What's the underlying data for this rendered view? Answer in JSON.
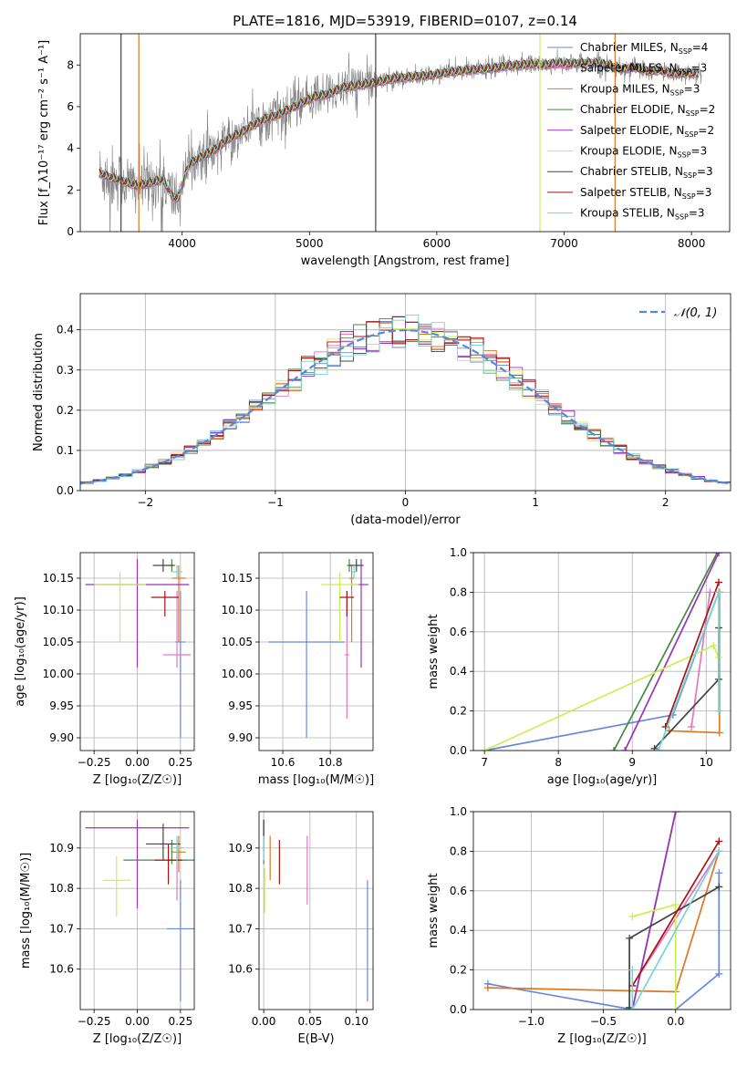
{
  "chart_data": [
    {
      "id": "spectrum",
      "type": "line",
      "title": "PLATE=1816, MJD=53919, FIBERID=0107, z=0.14",
      "xlabel": "wavelength [Angstrom, rest frame]",
      "ylabel": "Flux [f_λ10⁻¹⁷ erg cm⁻² s⁻¹ A⁻¹]",
      "xlim": [
        3200,
        8300
      ],
      "ylim": [
        0,
        9.5
      ],
      "xticks": [
        4000,
        5000,
        6000,
        7000,
        8000
      ],
      "yticks": [
        0,
        2,
        4,
        6,
        8
      ],
      "data_color": "#808080",
      "legend_position": "upper right",
      "legend": [
        {
          "label": "Chabrier MILES, N_SSP=4",
          "color": "#6688dd"
        },
        {
          "label": "Salpeter MILES, N_SSP=3",
          "color": "#e377c2"
        },
        {
          "label": "Kroupa MILES, N_SSP=3",
          "color": "#dd7722"
        },
        {
          "label": "Chabrier ELODIE, N_SSP=2",
          "color": "#448844"
        },
        {
          "label": "Salpeter ELODIE, N_SSP=2",
          "color": "#9933bb"
        },
        {
          "label": "Kroupa ELODIE, N_SSP=3",
          "color": "#ccee55"
        },
        {
          "label": "Chabrier STELIB, N_SSP=3",
          "color": "#444444"
        },
        {
          "label": "Salpeter STELIB, N_SSP=3",
          "color": "#aa1111"
        },
        {
          "label": "Kroupa STELIB, N_SSP=3",
          "color": "#77d4d4"
        }
      ],
      "model_points": [
        [
          3350,
          2.8
        ],
        [
          3450,
          2.6
        ],
        [
          3550,
          2.4
        ],
        [
          3650,
          2.2
        ],
        [
          3750,
          2.35
        ],
        [
          3850,
          2.5
        ],
        [
          3920,
          1.7
        ],
        [
          3970,
          1.6
        ],
        [
          4050,
          3.2
        ],
        [
          4150,
          3.6
        ],
        [
          4250,
          3.9
        ],
        [
          4350,
          4.4
        ],
        [
          4450,
          4.7
        ],
        [
          4550,
          5.1
        ],
        [
          4650,
          5.4
        ],
        [
          4750,
          5.6
        ],
        [
          4850,
          5.9
        ],
        [
          4950,
          6.2
        ],
        [
          5050,
          6.5
        ],
        [
          5150,
          6.6
        ],
        [
          5250,
          6.9
        ],
        [
          5350,
          7.0
        ],
        [
          5450,
          7.1
        ],
        [
          5550,
          7.2
        ],
        [
          5650,
          7.35
        ],
        [
          5750,
          7.4
        ],
        [
          5850,
          7.45
        ],
        [
          5950,
          7.5
        ],
        [
          6050,
          7.6
        ],
        [
          6150,
          7.7
        ],
        [
          6250,
          7.75
        ],
        [
          6350,
          7.8
        ],
        [
          6450,
          7.85
        ],
        [
          6550,
          7.95
        ],
        [
          6650,
          8.0
        ],
        [
          6750,
          8.05
        ],
        [
          6850,
          8.0
        ],
        [
          6950,
          8.1
        ],
        [
          7050,
          8.05
        ],
        [
          7150,
          8.1
        ],
        [
          7250,
          8.1
        ],
        [
          7350,
          8.0
        ],
        [
          7450,
          7.8
        ],
        [
          7550,
          7.9
        ],
        [
          7650,
          7.7
        ],
        [
          7750,
          7.75
        ],
        [
          7850,
          7.6
        ],
        [
          7950,
          7.6
        ],
        [
          8050,
          7.6
        ]
      ],
      "spikes": [
        [
          3520,
          "#444444"
        ],
        [
          3660,
          "#dd7722"
        ],
        [
          6810,
          "#ccee55"
        ],
        [
          7400,
          "#dd7722"
        ],
        [
          5520,
          "#444444"
        ]
      ]
    },
    {
      "id": "residuals",
      "type": "line",
      "xlabel": "(data-model)/error",
      "ylabel": "Normed distribution",
      "xlim": [
        -2.5,
        2.5
      ],
      "ylim": [
        0,
        0.49
      ],
      "xticks": [
        -2,
        -1,
        0,
        1,
        2
      ],
      "yticks": [
        0.0,
        0.1,
        0.2,
        0.3,
        0.4
      ],
      "gaussian_label": "𝒩(0, 1)",
      "gaussian_color": "#5588dd",
      "legend_position": "upper right",
      "bin_width": 0.1
    },
    {
      "id": "age_vs_Z",
      "type": "scatter",
      "xlabel": "Z [log₁₀(Z/Z☉)]",
      "ylabel": "age  [log₁₀(age/yr)]",
      "xlim": [
        -0.33,
        0.33
      ],
      "ylim": [
        9.88,
        10.19
      ],
      "xticks": [
        -0.25,
        0.0,
        0.25
      ],
      "yticks": [
        9.9,
        9.95,
        10.0,
        10.05,
        10.1,
        10.15
      ],
      "points": [
        {
          "color": "#6688dd",
          "x": 0.25,
          "y": 10.05,
          "xerr": 0.03,
          "yerr": [
            0.15,
            0.08
          ]
        },
        {
          "color": "#e377c2",
          "x": 0.23,
          "y": 10.03,
          "xerr": 0.08,
          "yerr": [
            0.02,
            0.1
          ]
        },
        {
          "color": "#dd7722",
          "x": 0.24,
          "y": 10.15,
          "xerr": 0.04,
          "yerr": [
            0.1,
            0.02
          ]
        },
        {
          "color": "#448844",
          "x": 0.2,
          "y": 10.17,
          "xerr": 0.02,
          "yerr": [
            0.01,
            0.01
          ]
        },
        {
          "color": "#9933bb",
          "x": 0.0,
          "y": 10.14,
          "xerr": 0.3,
          "yerr": [
            0.13,
            0.04
          ]
        },
        {
          "color": "#ccee55",
          "x": -0.1,
          "y": 10.14,
          "xerr": 0.15,
          "yerr": [
            0.09,
            0.02
          ]
        },
        {
          "color": "#444444",
          "x": 0.15,
          "y": 10.17,
          "xerr": 0.06,
          "yerr": [
            0.01,
            0.01
          ]
        },
        {
          "color": "#aa1111",
          "x": 0.16,
          "y": 10.12,
          "xerr": 0.08,
          "yerr": [
            0.03,
            0.01
          ]
        },
        {
          "color": "#77d4d4",
          "x": 0.23,
          "y": 10.16,
          "xerr": 0.03,
          "yerr": [
            0.01,
            0.01
          ]
        }
      ]
    },
    {
      "id": "age_vs_mass",
      "type": "scatter",
      "xlabel": "mass [log₁₀(M/M☉)]",
      "ylabel": "",
      "xlim": [
        10.5,
        10.98
      ],
      "ylim": [
        9.88,
        10.19
      ],
      "xticks": [
        10.6,
        10.8
      ],
      "yticks": [
        9.9,
        9.95,
        10.0,
        10.05,
        10.1,
        10.15
      ],
      "points": [
        {
          "color": "#6688dd",
          "x": 10.7,
          "y": 10.05,
          "xerr": 0.16,
          "yerr": [
            0.15,
            0.08
          ]
        },
        {
          "color": "#e377c2",
          "x": 10.87,
          "y": 10.03,
          "xerr": 0.01,
          "yerr": [
            0.1,
            0.1
          ]
        },
        {
          "color": "#dd7722",
          "x": 10.89,
          "y": 10.15,
          "xerr": 0.01,
          "yerr": [
            0.1,
            0.02
          ]
        },
        {
          "color": "#448844",
          "x": 10.88,
          "y": 10.17,
          "xerr": 0.01,
          "yerr": [
            0.01,
            0.01
          ]
        },
        {
          "color": "#9933bb",
          "x": 10.93,
          "y": 10.14,
          "xerr": 0.03,
          "yerr": [
            0.13,
            0.04
          ]
        },
        {
          "color": "#ccee55",
          "x": 10.84,
          "y": 10.14,
          "xerr": 0.08,
          "yerr": [
            0.09,
            0.02
          ]
        },
        {
          "color": "#444444",
          "x": 10.91,
          "y": 10.17,
          "xerr": 0.03,
          "yerr": [
            0.01,
            0.01
          ]
        },
        {
          "color": "#aa1111",
          "x": 10.87,
          "y": 10.12,
          "xerr": 0.03,
          "yerr": [
            0.03,
            0.01
          ]
        },
        {
          "color": "#77d4d4",
          "x": 10.9,
          "y": 10.16,
          "xerr": 0.01,
          "yerr": [
            0.01,
            0.01
          ]
        }
      ]
    },
    {
      "id": "weight_vs_age",
      "type": "line",
      "xlabel": "age  [log₁₀(age/yr)]",
      "ylabel": "mass weight",
      "xlim": [
        6.85,
        10.33
      ],
      "ylim": [
        0,
        1.0
      ],
      "xticks": [
        7,
        8,
        9,
        10
      ],
      "yticks": [
        0.0,
        0.2,
        0.4,
        0.6,
        0.8,
        1.0
      ],
      "series": [
        {
          "color": "#6688dd",
          "points": [
            [
              7.0,
              0.0
            ],
            [
              9.55,
              0.18
            ],
            [
              10.17,
              0.8
            ]
          ]
        },
        {
          "color": "#e377c2",
          "points": [
            [
              9.8,
              0.12
            ],
            [
              10.05,
              0.8
            ]
          ]
        },
        {
          "color": "#dd7722",
          "points": [
            [
              9.5,
              0.1
            ],
            [
              10.18,
              0.09
            ],
            [
              10.18,
              0.8
            ]
          ]
        },
        {
          "color": "#448844",
          "points": [
            [
              8.75,
              0.0
            ],
            [
              10.15,
              1.0
            ]
          ]
        },
        {
          "color": "#9933bb",
          "points": [
            [
              8.9,
              0.0
            ],
            [
              10.17,
              1.0
            ]
          ]
        },
        {
          "color": "#ccee55",
          "points": [
            [
              7.0,
              0.0
            ],
            [
              10.1,
              0.53
            ],
            [
              10.17,
              0.47
            ]
          ]
        },
        {
          "color": "#444444",
          "points": [
            [
              9.3,
              0.01
            ],
            [
              10.17,
              0.36
            ],
            [
              10.17,
              0.62
            ]
          ]
        },
        {
          "color": "#aa1111",
          "points": [
            [
              9.45,
              0.12
            ],
            [
              10.17,
              0.85
            ]
          ]
        },
        {
          "color": "#77d4d4",
          "points": [
            [
              9.35,
              0.0
            ],
            [
              10.17,
              0.8
            ],
            [
              10.17,
              0.2
            ]
          ]
        }
      ]
    },
    {
      "id": "mass_vs_Z",
      "type": "scatter",
      "xlabel": "Z [log₁₀(Z/Z☉)]",
      "ylabel": "mass [log₁₀(M/M☉)]",
      "xlim": [
        -0.33,
        0.33
      ],
      "ylim": [
        10.5,
        10.99
      ],
      "xticks": [
        -0.25,
        0.0,
        0.25
      ],
      "yticks": [
        10.6,
        10.7,
        10.8,
        10.9
      ],
      "points": [
        {
          "color": "#6688dd",
          "x": 0.25,
          "y": 10.7,
          "xerr": 0.08,
          "yerr": [
            0.18,
            0.12
          ]
        },
        {
          "color": "#e377c2",
          "x": 0.23,
          "y": 10.87,
          "xerr": 0.06,
          "yerr": [
            0.1,
            0.05
          ]
        },
        {
          "color": "#dd7722",
          "x": 0.24,
          "y": 10.89,
          "xerr": 0.04,
          "yerr": [
            0.05,
            0.04
          ]
        },
        {
          "color": "#448844",
          "x": 0.2,
          "y": 10.87,
          "xerr": 0.28,
          "yerr": [
            0.01,
            0.05
          ]
        },
        {
          "color": "#9933bb",
          "x": 0.0,
          "y": 10.95,
          "xerr": 0.3,
          "yerr": [
            0.2,
            0.02
          ]
        },
        {
          "color": "#ccee55",
          "x": -0.12,
          "y": 10.82,
          "xerr": 0.08,
          "yerr": [
            0.09,
            0.06
          ]
        },
        {
          "color": "#444444",
          "x": 0.15,
          "y": 10.91,
          "xerr": 0.1,
          "yerr": [
            0.04,
            0.05
          ]
        },
        {
          "color": "#aa1111",
          "x": 0.18,
          "y": 10.87,
          "xerr": 0.08,
          "yerr": [
            0.06,
            0.04
          ]
        },
        {
          "color": "#77d4d4",
          "x": 0.23,
          "y": 10.9,
          "xerr": 0.04,
          "yerr": [
            0.04,
            0.03
          ]
        }
      ]
    },
    {
      "id": "mass_vs_ebv",
      "type": "scatter",
      "xlabel": "E(B-V)",
      "ylabel": "",
      "xlim": [
        -0.005,
        0.118
      ],
      "ylim": [
        10.5,
        10.99
      ],
      "xticks": [
        0.0,
        0.05,
        0.1
      ],
      "yticks": [
        10.6,
        10.7,
        10.8,
        10.9
      ],
      "points": [
        {
          "color": "#6688dd",
          "x": 0.112,
          "y": 10.7,
          "xerr": 0.0,
          "yerr": [
            0.18,
            0.12
          ]
        },
        {
          "color": "#e377c2",
          "x": 0.047,
          "y": 10.85,
          "xerr": 0.0,
          "yerr": [
            0.09,
            0.08
          ]
        },
        {
          "color": "#dd7722",
          "x": 0.007,
          "y": 10.87,
          "xerr": 0.0,
          "yerr": [
            0.05,
            0.06
          ]
        },
        {
          "color": "#448844",
          "x": 0.0,
          "y": 10.9,
          "xerr": 0.0,
          "yerr": [
            0.04,
            0.07
          ]
        },
        {
          "color": "#9933bb",
          "x": 0.0,
          "y": 10.95,
          "xerr": 0.0,
          "yerr": [
            0.02,
            0.02
          ]
        },
        {
          "color": "#ccee55",
          "x": 0.001,
          "y": 10.8,
          "xerr": 0.0,
          "yerr": [
            0.06,
            0.05
          ]
        },
        {
          "color": "#444444",
          "x": 0.0,
          "y": 10.93,
          "xerr": 0.0,
          "yerr": [
            0.04,
            0.04
          ]
        },
        {
          "color": "#aa1111",
          "x": 0.017,
          "y": 10.86,
          "xerr": 0.0,
          "yerr": [
            0.05,
            0.06
          ]
        },
        {
          "color": "#77d4d4",
          "x": 0.0,
          "y": 10.9,
          "xerr": 0.0,
          "yerr": [
            0.03,
            0.03
          ]
        }
      ]
    },
    {
      "id": "weight_vs_Z",
      "type": "line",
      "xlabel": "Z [log₁₀(Z/Z☉)]",
      "ylabel": "mass weight",
      "xlim": [
        -1.4,
        0.38
      ],
      "ylim": [
        0,
        1.0
      ],
      "xticks": [
        -1.0,
        -0.5,
        0.0
      ],
      "yticks": [
        0.0,
        0.2,
        0.4,
        0.6,
        0.8,
        1.0
      ],
      "series": [
        {
          "color": "#6688dd",
          "points": [
            [
              -1.3,
              0.13
            ],
            [
              -0.3,
              0.0
            ],
            [
              0.0,
              0.0
            ],
            [
              0.3,
              0.18
            ],
            [
              0.3,
              0.69
            ]
          ]
        },
        {
          "color": "#e377c2",
          "points": [
            [
              -0.3,
              0.12
            ],
            [
              0.3,
              0.8
            ]
          ]
        },
        {
          "color": "#dd7722",
          "points": [
            [
              -1.3,
              0.11
            ],
            [
              0.0,
              0.09
            ],
            [
              0.3,
              0.8
            ]
          ]
        },
        {
          "color": "#448844",
          "points": [
            [
              -0.3,
              0.0
            ],
            [
              0.0,
              1.0
            ]
          ]
        },
        {
          "color": "#9933bb",
          "points": [
            [
              -0.3,
              0.0
            ],
            [
              0.0,
              1.0
            ]
          ]
        },
        {
          "color": "#ccee55",
          "points": [
            [
              -0.3,
              0.47
            ],
            [
              0.0,
              0.53
            ],
            [
              0.0,
              0.0
            ]
          ]
        },
        {
          "color": "#444444",
          "points": [
            [
              -0.32,
              0.01
            ],
            [
              -0.32,
              0.36
            ],
            [
              0.3,
              0.62
            ]
          ]
        },
        {
          "color": "#aa1111",
          "points": [
            [
              -0.3,
              0.12
            ],
            [
              0.3,
              0.85
            ]
          ]
        },
        {
          "color": "#77d4d4",
          "points": [
            [
              -0.3,
              0.2
            ],
            [
              -0.3,
              0.0
            ],
            [
              0.3,
              0.8
            ]
          ]
        }
      ]
    }
  ]
}
